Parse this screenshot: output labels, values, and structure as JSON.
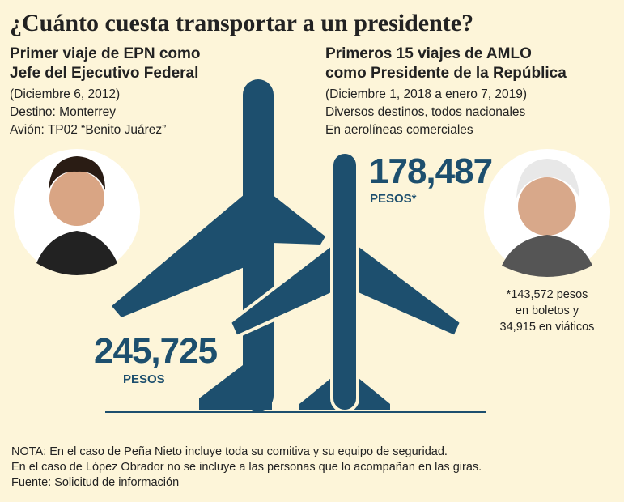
{
  "header": {
    "title": "¿Cuánto cuesta transportar a un presidente?"
  },
  "left": {
    "heading": [
      "Primer viaje de EPN como",
      "Jefe del Ejecutivo Federal"
    ],
    "details": [
      "(Diciembre 6, 2012)",
      "Destino: Monterrey",
      "Avión: TP02 “Benito Juárez”"
    ],
    "amount": "245,725",
    "unit": "PESOS"
  },
  "right": {
    "heading": [
      "Primeros 15 viajes de AMLO",
      "como Presidente de la República"
    ],
    "details": [
      "(Diciembre 1, 2018 a enero 7, 2019)",
      "Diversos destinos, todos nacionales",
      "En aerolíneas comerciales"
    ],
    "amount": "178,487",
    "unit": "PESOS*",
    "footnote": [
      "*143,572 pesos",
      "en boletos y",
      "34,915 en viáticos"
    ]
  },
  "notes": [
    "NOTA: En el caso de Peña Nieto incluye toda su comitiva y su equipo de seguridad.",
    "En el caso de López Obrador no se incluye a las personas que lo acompañan en las giras.",
    "Fuente: Solicitud de información"
  ]
}
